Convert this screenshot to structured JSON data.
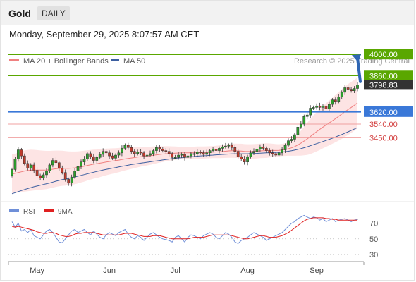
{
  "header": {
    "symbol": "Gold",
    "timeframe": "DAILY"
  },
  "timestamp": "Monday, September 29, 2025 8:07:57 AM CET",
  "source": "Research © 2025 Trading Central",
  "colors": {
    "bollinger": "#f08080",
    "bollinger_fill": "#fde4e4",
    "ma50": "#3c5fa0",
    "rsi": "#6f8fd8",
    "rsi9ma": "#e02020",
    "resistance": "#5aa700",
    "pivot": "#3a78d8",
    "support": "#f0a0a0",
    "up_candle": "#2c9e2c",
    "down_candle": "#c0392b",
    "arrow": "#2f66b3"
  },
  "chart_data": [
    {
      "type": "candlestick",
      "instrument": "Gold",
      "timeframe": "DAILY",
      "legend": [
        "MA 20 + Bollinger Bands",
        "MA 50"
      ],
      "x_labels": [
        "May",
        "Jun",
        "Jul",
        "Aug",
        "Sep"
      ],
      "last_price": "3798.83",
      "levels": [
        {
          "value": 4000,
          "label": "4000.00",
          "kind": "target"
        },
        {
          "value": 3860,
          "label": "3860.00",
          "kind": "resistance"
        },
        {
          "value": 3620,
          "label": "3620.00",
          "kind": "pivot"
        },
        {
          "value": 3540,
          "label": "3540.00",
          "kind": "support"
        },
        {
          "value": 3450,
          "label": "3450.00",
          "kind": "support"
        }
      ],
      "close": [
        3240,
        3310,
        3370,
        3330,
        3280,
        3250,
        3270,
        3235,
        3200,
        3185,
        3205,
        3230,
        3270,
        3300,
        3285,
        3250,
        3220,
        3175,
        3150,
        3190,
        3230,
        3260,
        3290,
        3310,
        3345,
        3325,
        3300,
        3320,
        3340,
        3360,
        3350,
        3330,
        3315,
        3335,
        3350,
        3380,
        3400,
        3385,
        3360,
        3345,
        3355,
        3350,
        3330,
        3335,
        3345,
        3365,
        3385,
        3375,
        3365,
        3360,
        3345,
        3320,
        3320,
        3335,
        3340,
        3320,
        3330,
        3345,
        3345,
        3355,
        3350,
        3340,
        3350,
        3365,
        3375,
        3365,
        3380,
        3390,
        3395,
        3400,
        3385,
        3360,
        3325,
        3310,
        3290,
        3325,
        3350,
        3360,
        3375,
        3390,
        3380,
        3365,
        3350,
        3345,
        3335,
        3350,
        3370,
        3400,
        3430,
        3440,
        3470,
        3520,
        3540,
        3590,
        3600,
        3645,
        3650,
        3660,
        3650,
        3660,
        3640,
        3670,
        3700,
        3690,
        3720,
        3750,
        3780,
        3770,
        3760,
        3775,
        3798.83
      ],
      "ma20": [
        3210,
        3215,
        3220,
        3225,
        3230,
        3233,
        3235,
        3236,
        3236,
        3236,
        3236,
        3237,
        3239,
        3242,
        3245,
        3247,
        3248,
        3248,
        3248,
        3249,
        3251,
        3254,
        3258,
        3262,
        3267,
        3271,
        3275,
        3278,
        3282,
        3286,
        3290,
        3293,
        3296,
        3299,
        3302,
        3306,
        3310,
        3313,
        3316,
        3319,
        3322,
        3325,
        3327,
        3329,
        3331,
        3334,
        3337,
        3340,
        3342,
        3344,
        3346,
        3347,
        3348,
        3349,
        3350,
        3350,
        3350,
        3351,
        3351,
        3352,
        3352,
        3352,
        3353,
        3354,
        3355,
        3356,
        3357,
        3359,
        3361,
        3363,
        3364,
        3364,
        3363,
        3362,
        3360,
        3359,
        3359,
        3360,
        3361,
        3363,
        3364,
        3365,
        3366,
        3366,
        3366,
        3367,
        3369,
        3372,
        3377,
        3383,
        3391,
        3402,
        3414,
        3428,
        3442,
        3458,
        3474,
        3490,
        3505,
        3520,
        3534,
        3548,
        3562,
        3576,
        3591,
        3606,
        3622,
        3636,
        3650,
        3664,
        3680
      ],
      "ma50": [
        3080,
        3087,
        3094,
        3101,
        3108,
        3114,
        3120,
        3126,
        3131,
        3136,
        3141,
        3146,
        3151,
        3157,
        3163,
        3168,
        3173,
        3177,
        3181,
        3186,
        3191,
        3196,
        3201,
        3206,
        3212,
        3217,
        3222,
        3227,
        3232,
        3237,
        3241,
        3245,
        3249,
        3253,
        3257,
        3261,
        3265,
        3269,
        3273,
        3276,
        3279,
        3282,
        3285,
        3288,
        3291,
        3294,
        3297,
        3300,
        3303,
        3306,
        3309,
        3312,
        3314,
        3316,
        3318,
        3320,
        3322,
        3324,
        3326,
        3328,
        3330,
        3331,
        3332,
        3334,
        3335,
        3337,
        3338,
        3340,
        3341,
        3342,
        3343,
        3344,
        3344,
        3344,
        3344,
        3344,
        3345,
        3346,
        3347,
        3348,
        3349,
        3350,
        3351,
        3352,
        3353,
        3354,
        3356,
        3358,
        3361,
        3364,
        3368,
        3373,
        3378,
        3384,
        3390,
        3397,
        3404,
        3411,
        3418,
        3425,
        3432,
        3439,
        3447,
        3455,
        3463,
        3471,
        3480,
        3489,
        3498,
        3507,
        3517
      ],
      "bb_width": [
        130,
        130,
        132,
        134,
        136,
        136,
        136,
        134,
        132,
        130,
        128,
        126,
        124,
        122,
        120,
        118,
        116,
        114,
        112,
        110,
        108,
        106,
        104,
        102,
        100,
        98,
        96,
        94,
        92,
        90,
        88,
        86,
        84,
        82,
        80,
        78,
        76,
        74,
        72,
        70,
        68,
        66,
        64,
        62,
        60,
        58,
        56,
        54,
        52,
        50,
        48,
        46,
        44,
        42,
        41,
        40,
        40,
        40,
        40,
        40,
        40,
        40,
        40,
        40,
        40,
        41,
        42,
        43,
        44,
        45,
        46,
        47,
        47,
        48,
        48,
        48,
        48,
        48,
        48,
        48,
        48,
        48,
        46,
        44,
        42,
        40,
        40,
        42,
        46,
        52,
        60,
        70,
        82,
        94,
        106,
        116,
        124,
        130,
        136,
        140,
        144,
        148,
        152,
        156,
        160,
        164,
        166,
        168,
        168,
        168,
        168
      ],
      "ylim": [
        3000,
        4080
      ]
    },
    {
      "type": "line",
      "legend": [
        "RSI",
        "9MA"
      ],
      "y_ticks": [
        "70",
        "50",
        "30"
      ],
      "y_tick_values": [
        70,
        50,
        30
      ],
      "ylim": [
        20,
        85
      ],
      "rsi": [
        72,
        65,
        70,
        60,
        62,
        58,
        62,
        54,
        52,
        50,
        55,
        60,
        62,
        58,
        52,
        46,
        45,
        50,
        55,
        60,
        62,
        58,
        60,
        62,
        58,
        55,
        60,
        56,
        52,
        50,
        55,
        58,
        56,
        54,
        58,
        60,
        62,
        56,
        52,
        50,
        54,
        52,
        48,
        52,
        56,
        58,
        55,
        52,
        50,
        49,
        48,
        46,
        52,
        54,
        50,
        46,
        52,
        55,
        54,
        52,
        50,
        54,
        56,
        58,
        56,
        52,
        50,
        54,
        58,
        56,
        52,
        46,
        44,
        48,
        50,
        52,
        55,
        58,
        56,
        54,
        52,
        48,
        50,
        52,
        54,
        56,
        58,
        62,
        66,
        70,
        72,
        76,
        78,
        80,
        78,
        76,
        78,
        77,
        74,
        76,
        72,
        74,
        76,
        72,
        74,
        75,
        76,
        74,
        72,
        74,
        75
      ],
      "rsi_9ma": [
        66,
        65,
        66,
        65,
        64,
        63,
        62,
        61,
        59,
        58,
        57,
        57,
        58,
        58,
        57,
        55,
        54,
        53,
        53,
        54,
        56,
        57,
        57,
        58,
        58,
        58,
        58,
        57,
        56,
        55,
        55,
        55,
        55,
        55,
        55,
        56,
        57,
        57,
        57,
        56,
        55,
        54,
        53,
        53,
        53,
        54,
        54,
        54,
        53,
        52,
        51,
        50,
        50,
        50,
        50,
        50,
        50,
        51,
        52,
        52,
        52,
        52,
        53,
        54,
        55,
        55,
        55,
        55,
        55,
        55,
        54,
        53,
        52,
        51,
        50,
        50,
        51,
        52,
        53,
        54,
        54,
        53,
        52,
        52,
        52,
        53,
        54,
        56,
        58,
        61,
        64,
        67,
        70,
        73,
        75,
        76,
        77,
        77,
        77,
        77,
        76,
        76,
        75,
        75,
        74,
        74,
        74,
        74,
        74,
        74,
        74
      ]
    }
  ]
}
